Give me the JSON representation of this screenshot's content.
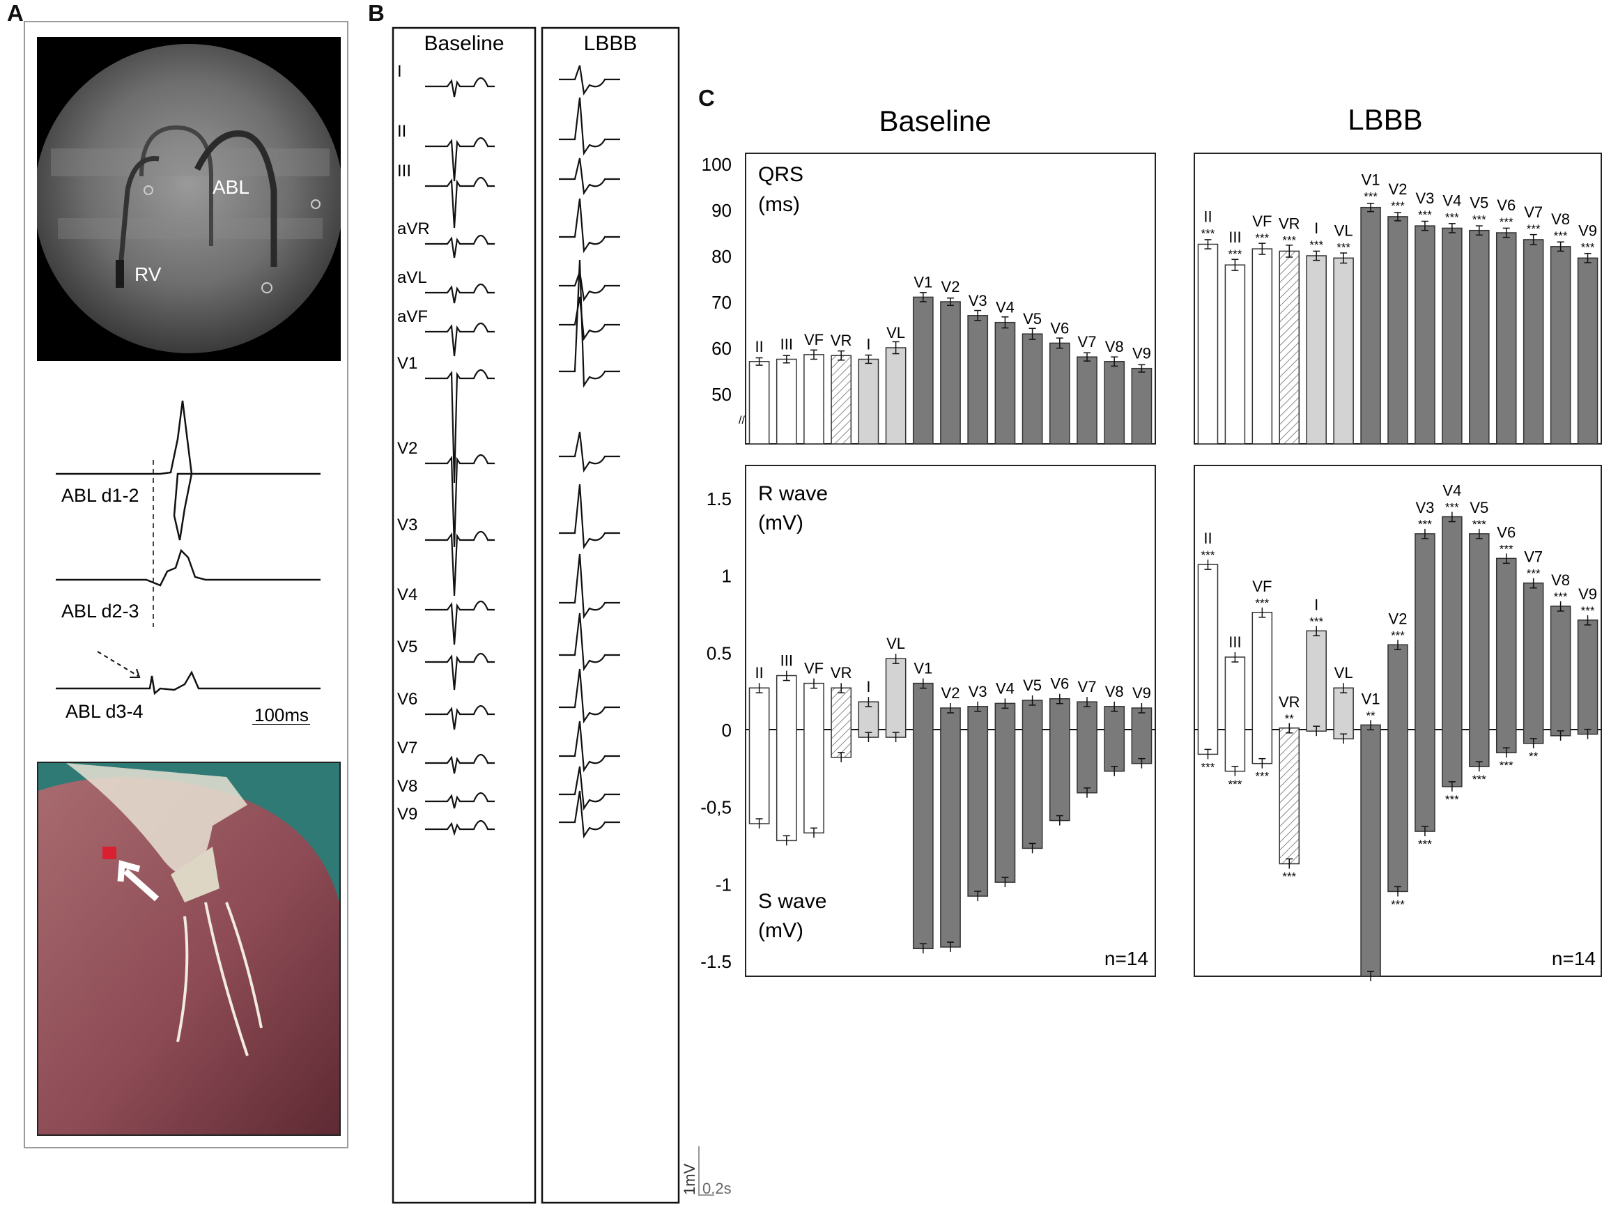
{
  "panel_labels": {
    "a": "A",
    "b": "B",
    "c": "C"
  },
  "panel_a": {
    "fluoro_labels": [
      "ABL",
      "RV"
    ],
    "traces": [
      "ABL d1-2",
      "ABL d2-3",
      "ABL d3-4"
    ],
    "scale": "100ms"
  },
  "panel_b": {
    "col_baseline": "Baseline",
    "col_lbbb": "LBBB",
    "leads": [
      "I",
      "II",
      "III",
      "aVR",
      "aVL",
      "aVF",
      "V1",
      "V2",
      "V3",
      "V4",
      "V5",
      "V6",
      "V7",
      "V8",
      "V9"
    ],
    "scale_v": "1mV",
    "scale_t": "0.2s"
  },
  "panel_c": {
    "col_titles": [
      "Baseline",
      "LBBB"
    ],
    "top_label_line1": "QRS",
    "top_label_line2": "(ms)",
    "r_label_line1": "R wave",
    "r_label_line2": "(mV)",
    "s_label_line1": "S wave",
    "s_label_line2": "(mV)",
    "n_text": "n=14",
    "colors": {
      "white": "#ffffff",
      "light": "#d3d3d3",
      "dark": "#7a7a7a",
      "hatch": "#888888"
    }
  },
  "chart_data": [
    {
      "type": "bar",
      "title": "Baseline",
      "ylabel": "QRS (ms)",
      "ylim": [
        45,
        100
      ],
      "yticks": [
        "100",
        "90",
        "80",
        "70",
        "60",
        "50"
      ],
      "categories": [
        "II",
        "III",
        "VF",
        "VR",
        "I",
        "VL",
        "V1",
        "V2",
        "V3",
        "V4",
        "V5",
        "V6",
        "V7",
        "V8",
        "V9"
      ],
      "values": [
        57,
        57.5,
        58.5,
        58.3,
        57.5,
        60,
        71,
        70,
        67,
        65.5,
        63,
        61,
        58,
        57,
        55.5
      ],
      "errors": [
        0.8,
        0.8,
        1,
        1,
        0.9,
        1.3,
        1,
        0.8,
        1.1,
        1.2,
        1.2,
        1.1,
        0.9,
        1,
        0.8
      ],
      "bar_styles": [
        "white",
        "white",
        "white",
        "hatch",
        "light",
        "light",
        "dark",
        "dark",
        "dark",
        "dark",
        "dark",
        "dark",
        "dark",
        "dark",
        "dark"
      ]
    },
    {
      "type": "bar",
      "title": "LBBB",
      "ylabel": "QRS (ms)",
      "ylim": [
        45,
        100
      ],
      "categories": [
        "II",
        "III",
        "VF",
        "VR",
        "I",
        "VL",
        "V1",
        "V2",
        "V3",
        "V4",
        "V5",
        "V6",
        "V7",
        "V8",
        "V9"
      ],
      "values": [
        82.5,
        78,
        81.5,
        81,
        80,
        79.5,
        90.5,
        88.5,
        86.5,
        86,
        85.5,
        85,
        83.5,
        82,
        79.5
      ],
      "errors": [
        1,
        1.2,
        1.2,
        1.3,
        1,
        1.1,
        0.9,
        0.9,
        1,
        1,
        1,
        1,
        1.1,
        1,
        1
      ],
      "significance": [
        "***",
        "***",
        "***",
        "***",
        "***",
        "***",
        "***",
        "***",
        "***",
        "***",
        "***",
        "***",
        "***",
        "***",
        "***"
      ],
      "bar_styles": [
        "white",
        "white",
        "white",
        "hatch",
        "light",
        "light",
        "dark",
        "dark",
        "dark",
        "dark",
        "dark",
        "dark",
        "dark",
        "dark",
        "dark"
      ]
    },
    {
      "type": "bar",
      "title": "Baseline",
      "ylabel": "R wave (mV) / S wave (mV)",
      "ylim": [
        -1.6,
        1.7
      ],
      "yticks": [
        "1.5",
        "1",
        "0.5",
        "0",
        "-0,5",
        "-1",
        "-1.5"
      ],
      "categories": [
        "II",
        "III",
        "VF",
        "VR",
        "I",
        "VL",
        "V1",
        "V2",
        "V3",
        "V4",
        "V5",
        "V6",
        "V7",
        "V8",
        "V9"
      ],
      "r_values": [
        0.27,
        0.35,
        0.3,
        0.27,
        0.18,
        0.46,
        0.3,
        0.14,
        0.15,
        0.17,
        0.19,
        0.2,
        0.18,
        0.15,
        0.14
      ],
      "s_values": [
        -0.61,
        -0.72,
        -0.67,
        -0.18,
        -0.05,
        -0.05,
        -1.42,
        -1.41,
        -1.08,
        -0.99,
        -0.77,
        -0.59,
        -0.41,
        -0.27,
        -0.22
      ],
      "bar_styles": [
        "white",
        "white",
        "white",
        "hatch",
        "light",
        "light",
        "dark",
        "dark",
        "dark",
        "dark",
        "dark",
        "dark",
        "dark",
        "dark",
        "dark"
      ]
    },
    {
      "type": "bar",
      "title": "LBBB",
      "ylabel": "R wave (mV) / S wave (mV)",
      "ylim": [
        -1.6,
        1.7
      ],
      "categories": [
        "II",
        "III",
        "VF",
        "VR",
        "I",
        "VL",
        "V1",
        "V2",
        "V3",
        "V4",
        "V5",
        "V6",
        "V7",
        "V8",
        "V9"
      ],
      "r_values": [
        1.07,
        0.47,
        0.76,
        0.01,
        0.64,
        0.27,
        0.03,
        0.55,
        1.27,
        1.38,
        1.27,
        1.11,
        0.95,
        0.8,
        0.71
      ],
      "s_values": [
        -0.16,
        -0.27,
        -0.22,
        -0.87,
        -0.01,
        -0.06,
        -1.6,
        -1.05,
        -0.66,
        -0.37,
        -0.24,
        -0.15,
        -0.09,
        -0.04,
        -0.03
      ],
      "r_significance": [
        "***",
        "",
        "***",
        "**",
        "***",
        "",
        "**",
        "***",
        "***",
        "***",
        "***",
        "***",
        "***",
        "***",
        "***"
      ],
      "s_significance": [
        "***",
        "***",
        "***",
        "***",
        "",
        "",
        "",
        "***",
        "***",
        "***",
        "***",
        "***",
        "**",
        "",
        ""
      ],
      "bar_styles": [
        "white",
        "white",
        "white",
        "hatch",
        "light",
        "light",
        "dark",
        "dark",
        "dark",
        "dark",
        "dark",
        "dark",
        "dark",
        "dark",
        "dark"
      ]
    }
  ]
}
